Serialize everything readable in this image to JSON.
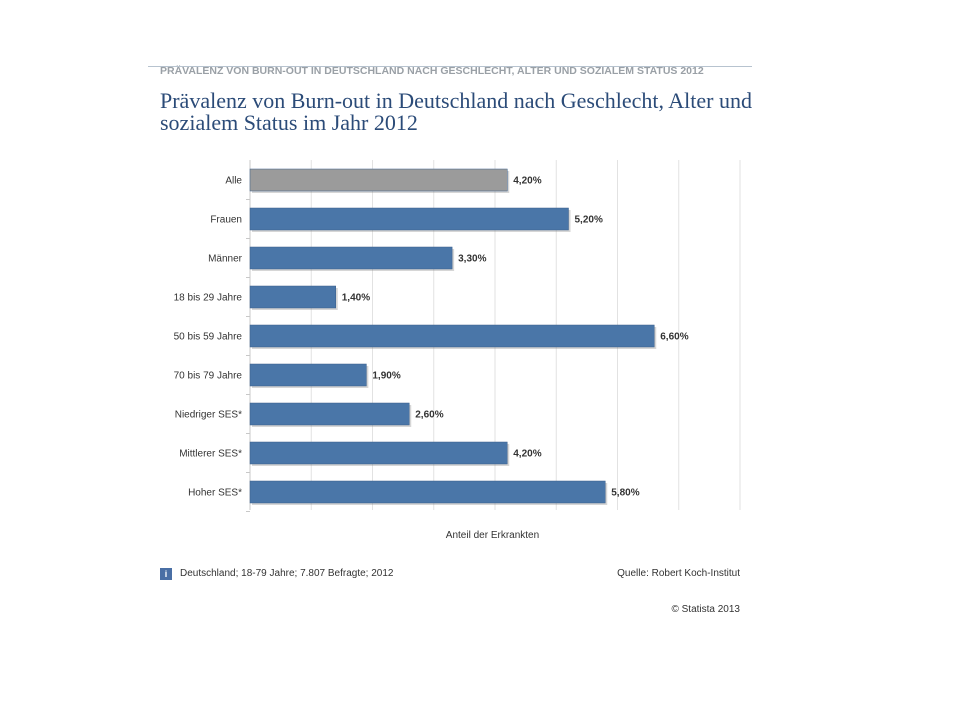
{
  "header": {
    "top_label": "PRÄVALENZ VON BURN-OUT IN DEUTSCHLAND NACH GESCHLECHT, ALTER UND SOZIALEM STATUS 2012",
    "title": "Prävalenz von Burn-out in Deutschland nach Geschlecht, Alter und sozialem Status im Jahr 2012"
  },
  "chart_data": {
    "type": "bar",
    "orientation": "horizontal",
    "categories": [
      "Alle",
      "Frauen",
      "Männer",
      "18 bis 29 Jahre",
      "50 bis 59 Jahre",
      "70 bis 79 Jahre",
      "Niedriger SES*",
      "Mittlerer SES*",
      "Hoher SES*"
    ],
    "values": [
      4.2,
      5.2,
      3.3,
      1.4,
      6.6,
      1.9,
      2.6,
      4.2,
      5.8
    ],
    "value_labels": [
      "4,20%",
      "5,20%",
      "3,30%",
      "1,40%",
      "6,60%",
      "1,90%",
      "2,60%",
      "4,20%",
      "5,80%"
    ],
    "colors": [
      "#9b9b9b",
      "#4a76a8",
      "#4a76a8",
      "#4a76a8",
      "#4a76a8",
      "#4a76a8",
      "#4a76a8",
      "#4a76a8",
      "#4a76a8"
    ],
    "xlabel": "Anteil der Erkrankten",
    "xlim": [
      0,
      8
    ],
    "grid": true
  },
  "footer": {
    "info_icon": "i",
    "note": "Deutschland; 18-79 Jahre; 7.807 Befragte; 2012",
    "source": "Quelle: Robert Koch-Institut",
    "copyright": "© Statista 2013"
  }
}
